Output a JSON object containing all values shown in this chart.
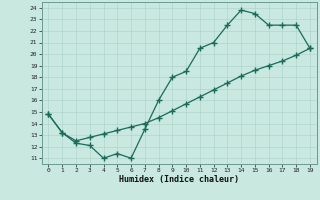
{
  "upper_x": [
    0,
    1,
    2,
    3,
    4,
    5,
    6,
    7,
    8,
    9,
    10,
    11,
    12,
    13,
    14,
    15,
    16,
    17,
    18,
    19
  ],
  "upper_y": [
    14.8,
    13.2,
    12.3,
    12.1,
    11.0,
    11.4,
    11.0,
    13.5,
    16.0,
    18.0,
    18.5,
    20.5,
    21.0,
    22.5,
    23.8,
    23.5,
    22.5,
    22.5,
    22.5,
    20.5
  ],
  "lower_x": [
    0,
    1,
    2,
    3,
    4,
    5,
    6,
    7,
    8,
    9,
    10,
    11,
    12,
    13,
    14,
    15,
    16,
    17,
    18,
    19
  ],
  "lower_y": [
    14.8,
    13.2,
    12.5,
    12.8,
    13.1,
    13.4,
    13.7,
    14.0,
    14.5,
    15.1,
    15.7,
    16.3,
    16.9,
    17.5,
    18.1,
    18.6,
    19.0,
    19.4,
    19.9,
    20.5
  ],
  "line_color": "#1a6b5a",
  "bg_color": "#c8e8e0",
  "xlabel": "Humidex (Indice chaleur)",
  "xlim": [
    -0.5,
    19.5
  ],
  "ylim": [
    10.5,
    24.5
  ],
  "xticks": [
    0,
    1,
    2,
    3,
    4,
    5,
    6,
    7,
    8,
    9,
    10,
    11,
    12,
    13,
    14,
    15,
    16,
    17,
    18,
    19
  ],
  "yticks": [
    11,
    12,
    13,
    14,
    15,
    16,
    17,
    18,
    19,
    20,
    21,
    22,
    23,
    24
  ],
  "grid_color": "#b0d4cc",
  "spine_color": "#6a9a90"
}
